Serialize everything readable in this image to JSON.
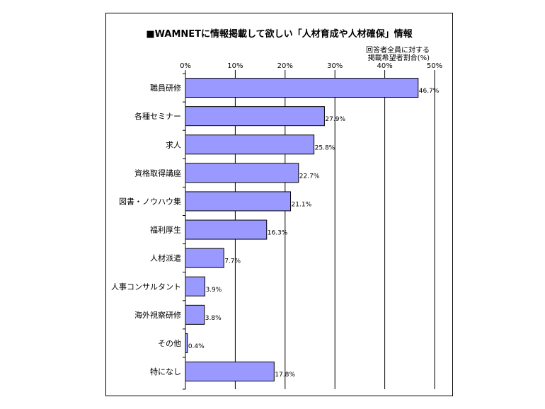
{
  "colors": {
    "bar_fill": "#9999ff",
    "bar_stroke": "#000000",
    "grid": "#000000"
  },
  "chart_data": {
    "type": "bar",
    "orientation": "horizontal",
    "title": "■WAMNETに情報掲載して欲しい「人材育成や人材確保」情報",
    "note": [
      "回答者全員に対する",
      "掲載希望者割合(%)"
    ],
    "categories": [
      "職員研修",
      "各種セミナー",
      "求人",
      "資格取得講座",
      "図書・ノウハウ集",
      "福利厚生",
      "人材派遣",
      "人事コンサルタント",
      "海外視察研修",
      "その他",
      "特になし"
    ],
    "values": [
      46.7,
      27.9,
      25.8,
      22.7,
      21.1,
      16.3,
      7.7,
      3.9,
      3.8,
      0.4,
      17.8
    ],
    "value_labels": [
      "46.7%",
      "27.9%",
      "25.8%",
      "22.7%",
      "21.1%",
      "16.3%",
      "7.7%",
      "3.9%",
      "3.8%",
      "0.4%",
      "17.8%"
    ],
    "x_ticks": [
      0,
      10,
      20,
      30,
      40,
      50
    ],
    "x_tick_labels": [
      "0%",
      "10%",
      "20%",
      "30%",
      "40%",
      "50%"
    ],
    "xlim": [
      0,
      50
    ],
    "grid": true,
    "legend": "none"
  }
}
